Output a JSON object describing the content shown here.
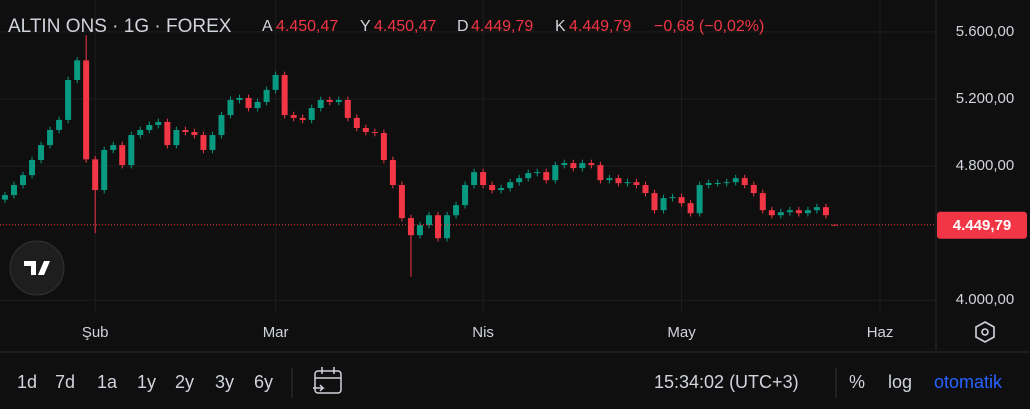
{
  "chart_data": {
    "type": "candlestick",
    "header": {
      "symbol": "ALTIN ONS · 1G · FOREX",
      "ohlc": [
        {
          "label": "A",
          "value": "4.450,47"
        },
        {
          "label": "Y",
          "value": "4.450,47"
        },
        {
          "label": "D",
          "value": "4.449,79"
        },
        {
          "label": "K",
          "value": "4.449,79"
        }
      ],
      "change": "−0,68 (−0,02%)"
    },
    "up_color": "#089981",
    "down_color": "#f23645",
    "open": [
      4600,
      4627,
      4687,
      4746,
      4836,
      4925,
      5015,
      5075,
      5313,
      5430,
      4840,
      4657,
      4896,
      4925,
      4806,
      4985,
      5015,
      5045,
      5063,
      4925,
      5015,
      5003,
      4985,
      4896,
      4985,
      5104,
      5194,
      5206,
      5146,
      5182,
      5254,
      5343,
      5104,
      5087,
      5075,
      5146,
      5194,
      5182,
      5194,
      5087,
      5027,
      5003,
      4997,
      4836,
      4687,
      4490,
      4388,
      4448,
      4507,
      4370,
      4507,
      4567,
      4687,
      4764,
      4687,
      4657,
      4669,
      4704,
      4728,
      4758,
      4764,
      4716,
      4806,
      4818,
      4788,
      4818,
      4806,
      4716,
      4728,
      4698,
      4704,
      4687,
      4639,
      4537,
      4609,
      4615,
      4579,
      4519,
      4687,
      4699,
      4699,
      4704,
      4728,
      4687,
      4639,
      4537,
      4507,
      4525,
      4537,
      4519,
      4537,
      4555,
      4450.47
    ],
    "high": [
      4647,
      4707,
      4766,
      4856,
      4945,
      5035,
      5095,
      5333,
      5450,
      5580,
      4860,
      4916,
      4945,
      4945,
      5005,
      5035,
      5065,
      5083,
      5083,
      5035,
      5035,
      5023,
      5005,
      5005,
      5124,
      5214,
      5226,
      5226,
      5202,
      5274,
      5363,
      5363,
      5124,
      5107,
      5166,
      5214,
      5214,
      5214,
      5214,
      5107,
      5047,
      5023,
      5017,
      4856,
      4707,
      4510,
      4468,
      4527,
      4527,
      4527,
      4587,
      4707,
      4784,
      4784,
      4707,
      4689,
      4724,
      4748,
      4778,
      4784,
      4784,
      4826,
      4838,
      4838,
      4838,
      4838,
      4826,
      4748,
      4748,
      4724,
      4724,
      4707,
      4659,
      4629,
      4635,
      4635,
      4599,
      4707,
      4719,
      4719,
      4724,
      4748,
      4748,
      4707,
      4659,
      4557,
      4545,
      4557,
      4557,
      4557,
      4575,
      4575,
      4450.47
    ],
    "low": [
      4580,
      4607,
      4667,
      4726,
      4816,
      4905,
      4995,
      5055,
      5293,
      4820,
      4400,
      4637,
      4876,
      4786,
      4786,
      4965,
      4995,
      5025,
      4905,
      4905,
      4983,
      4965,
      4876,
      4876,
      4965,
      5084,
      5174,
      5126,
      5126,
      5162,
      5234,
      5084,
      5067,
      5055,
      5055,
      5126,
      5162,
      5162,
      5067,
      5007,
      4983,
      4977,
      4816,
      4667,
      4470,
      4140,
      4368,
      4428,
      4350,
      4350,
      4487,
      4547,
      4667,
      4667,
      4637,
      4637,
      4649,
      4684,
      4708,
      4738,
      4696,
      4696,
      4786,
      4768,
      4768,
      4786,
      4696,
      4696,
      4678,
      4678,
      4667,
      4619,
      4517,
      4517,
      4589,
      4559,
      4499,
      4499,
      4667,
      4679,
      4679,
      4684,
      4667,
      4619,
      4517,
      4487,
      4487,
      4505,
      4499,
      4499,
      4517,
      4487,
      4449.79
    ],
    "close": [
      4627,
      4687,
      4746,
      4836,
      4925,
      5015,
      5075,
      5313,
      5430,
      4840,
      4657,
      4896,
      4925,
      4806,
      4985,
      5015,
      5045,
      5063,
      4925,
      5015,
      5003,
      4985,
      4896,
      4985,
      5104,
      5194,
      5206,
      5146,
      5182,
      5254,
      5343,
      5104,
      5087,
      5075,
      5146,
      5194,
      5182,
      5194,
      5087,
      5027,
      5003,
      4997,
      4836,
      4687,
      4490,
      4388,
      4448,
      4507,
      4370,
      4507,
      4567,
      4687,
      4764,
      4687,
      4657,
      4669,
      4704,
      4728,
      4758,
      4764,
      4716,
      4806,
      4818,
      4788,
      4818,
      4806,
      4716,
      4728,
      4698,
      4704,
      4687,
      4639,
      4537,
      4609,
      4615,
      4579,
      4519,
      4687,
      4699,
      4699,
      4704,
      4728,
      4687,
      4639,
      4537,
      4507,
      4525,
      4537,
      4519,
      4537,
      4555,
      4507,
      4449.79
    ],
    "last_price_label": "4.449,79",
    "xlim": [
      -0.55,
      103.2
    ],
    "xticks": [
      {
        "value": 10,
        "label": "Şub"
      },
      {
        "value": 30,
        "label": "Mar"
      },
      {
        "value": 53,
        "label": "Nis"
      },
      {
        "value": 75,
        "label": "May"
      },
      {
        "value": 97,
        "label": "Haz"
      }
    ],
    "ylim": [
      3930,
      5790
    ],
    "yticks": [
      {
        "value": 4000,
        "label": "4.000,00"
      },
      {
        "value": 4800,
        "label": "4.800,00"
      },
      {
        "value": 5200,
        "label": "5.200,00"
      },
      {
        "value": 5600,
        "label": "5.600,00"
      }
    ],
    "log_scale": false,
    "grid": true
  },
  "toolbar": {
    "ranges": [
      "1d",
      "7d",
      "1a",
      "1y",
      "2y",
      "3y",
      "6y"
    ],
    "time": "15:34:02 (UTC+3)",
    "percent": "%",
    "log": "log",
    "auto": "otomatik"
  }
}
